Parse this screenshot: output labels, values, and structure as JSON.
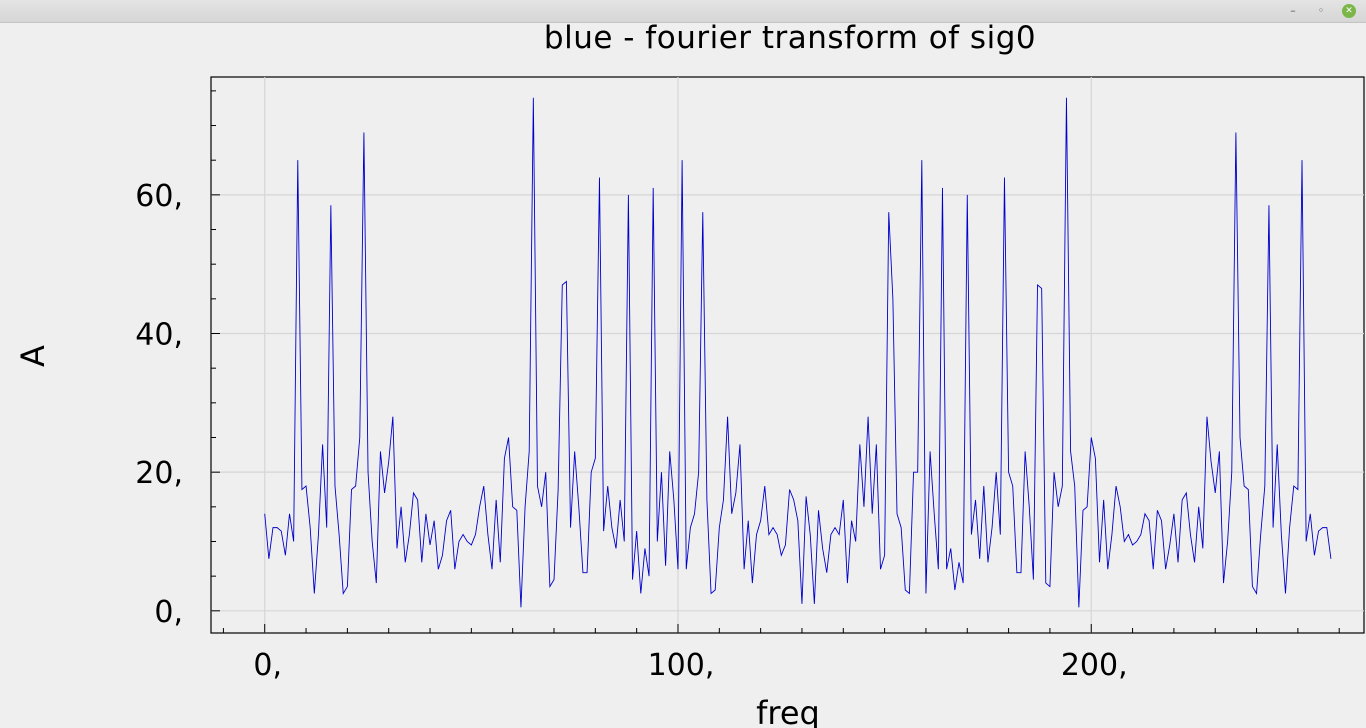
{
  "window": {
    "minimize_glyph": "–",
    "maximize_glyph": "◦",
    "close_glyph": "✕"
  },
  "chart_data": {
    "type": "line",
    "title": "blue - fourier transform of sig0",
    "xlabel": "freq",
    "ylabel": "A",
    "xlim": [
      -13,
      266
    ],
    "ylim": [
      -3.2,
      77
    ],
    "x_ticks": [
      0,
      100,
      200
    ],
    "x_tick_labels": [
      "0,",
      "100,",
      "200,"
    ],
    "y_ticks": [
      0,
      20,
      40,
      60
    ],
    "y_tick_labels": [
      "0,",
      "20,",
      "40,",
      "60,"
    ],
    "grid": true,
    "line_color": "#0000cc",
    "series": [
      {
        "x_start": 0,
        "x_step": 1,
        "values": [
          14,
          7.5,
          12,
          12,
          11.5,
          8,
          14,
          10,
          65,
          17.5,
          18,
          12,
          2.5,
          11,
          24,
          12,
          58.5,
          18,
          11,
          2.5,
          3.5,
          17.5,
          18,
          25,
          69,
          20,
          10,
          4,
          23,
          17,
          21.5,
          28,
          9,
          15,
          7,
          11,
          17,
          16,
          7,
          14,
          9.5,
          13,
          6,
          8,
          13,
          14.5,
          6,
          10,
          11,
          10,
          9.5,
          11,
          15,
          18,
          11,
          6,
          16,
          7,
          22,
          25,
          15,
          14.5,
          0.5,
          15,
          23,
          74,
          18,
          15,
          20,
          3.5,
          4.5,
          17.5,
          47,
          47.5,
          12,
          23,
          15,
          5.5,
          5.5,
          20,
          22,
          62.5,
          11.5,
          18,
          12,
          9,
          16,
          10,
          60,
          4.5,
          11.5,
          2.5,
          9,
          5,
          61,
          10,
          20,
          6.5,
          23,
          16,
          6,
          65,
          6,
          12,
          14,
          20,
          57.5,
          16,
          2.5,
          3,
          12,
          16,
          28,
          14,
          17,
          24,
          6,
          13,
          4,
          11,
          13,
          18,
          11,
          12,
          11,
          8,
          9.5,
          17.5,
          16,
          13,
          1,
          16.5,
          11,
          1,
          14.5,
          9,
          5.5,
          11,
          12,
          11,
          16,
          4,
          13,
          10,
          24,
          15,
          28,
          14,
          24,
          6,
          8,
          57.5,
          45,
          14,
          12,
          3,
          2.5,
          20,
          20,
          65,
          2.5,
          23,
          14,
          6,
          61,
          6,
          9,
          3,
          7,
          4,
          60,
          11,
          16,
          7.5,
          18,
          7,
          12,
          20,
          11,
          62.5,
          20,
          18,
          5.5,
          5.5,
          23,
          15,
          4.5,
          47,
          46.5,
          4,
          3.5,
          20,
          15,
          18,
          74,
          23,
          18,
          0.5,
          14.5,
          15,
          25,
          22,
          7,
          16,
          6,
          11,
          18,
          15,
          10,
          11,
          9.5,
          10,
          11,
          14,
          13,
          6,
          14.5,
          13,
          6,
          9.5,
          14,
          7,
          16,
          17,
          11,
          7,
          15,
          9,
          28,
          21.5,
          17,
          23,
          4,
          10,
          20,
          69,
          25,
          18,
          17.5,
          3.5,
          2.5,
          11,
          18,
          58.5,
          12,
          24,
          11,
          2.5,
          12,
          18,
          17.5,
          65,
          10,
          14,
          8,
          11.5,
          12,
          12,
          7.5
        ]
      }
    ]
  }
}
